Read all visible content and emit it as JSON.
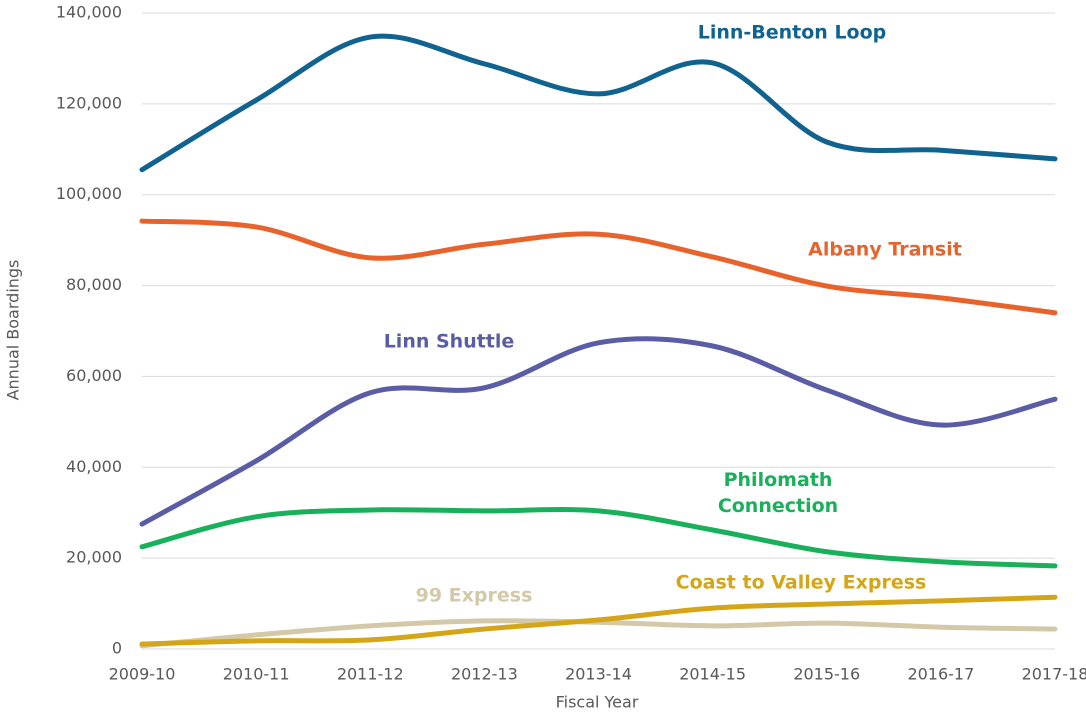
{
  "chart_data": {
    "type": "line",
    "x_label": "Fiscal Year",
    "y_label": "Annual Boardings",
    "categories": [
      "2009-10",
      "2010-11",
      "2011-12",
      "2012-13",
      "2013-14",
      "2014-15",
      "2015-16",
      "2016-17",
      "2017-18"
    ],
    "series": [
      {
        "name": "Linn-Benton Loop",
        "color": "#10628f",
        "values": [
          105500,
          120800,
          134700,
          128800,
          122200,
          129000,
          111600,
          109800,
          107900
        ]
      },
      {
        "name": "Albany Transit",
        "color": "#e8632c",
        "values": [
          94200,
          92900,
          86100,
          89100,
          91300,
          86300,
          79900,
          77300,
          74000
        ]
      },
      {
        "name": "Linn Shuttle",
        "color": "#5a5ca6",
        "values": [
          27500,
          41400,
          56400,
          57500,
          67400,
          66700,
          57000,
          49300,
          55000
        ]
      },
      {
        "name": "Philomath Connection",
        "color": "#19b05a",
        "values": [
          22500,
          29100,
          30600,
          30400,
          30400,
          26200,
          21400,
          19200,
          18300
        ]
      },
      {
        "name": "99 Express",
        "color": "#d3c9a8",
        "values": [
          700,
          3100,
          5100,
          6200,
          5900,
          5100,
          5700,
          4800,
          4400
        ]
      },
      {
        "name": "Coast to Valley Express",
        "color": "#d4a617",
        "values": [
          1100,
          1800,
          2000,
          4400,
          6400,
          9000,
          9900,
          10600,
          11400
        ]
      }
    ],
    "ylim": [
      0,
      140000
    ],
    "yticks": [
      0,
      {
        "value": 20000,
        "label": "20,000"
      },
      {
        "value": 40000,
        "label": "40,000"
      },
      {
        "value": 60000,
        "label": "60,000"
      },
      {
        "value": 80000,
        "label": "80,000"
      },
      {
        "value": 100000,
        "label": "100,000"
      },
      {
        "value": 120000,
        "label": "120,000"
      },
      {
        "value": 140000,
        "label": "140,000"
      }
    ],
    "grid": true
  }
}
